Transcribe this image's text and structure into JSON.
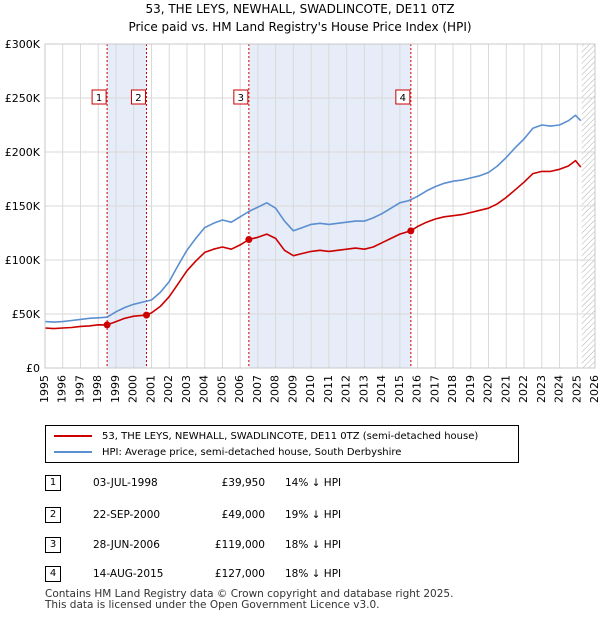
{
  "chart_data": {
    "type": "line",
    "title": "53, THE LEYS, NEWHALL, SWADLINCOTE, DE11 0TZ",
    "subtitle": "Price paid vs. HM Land Registry's House Price Index (HPI)",
    "xlim": [
      1995,
      2026
    ],
    "ylim": [
      0,
      300000
    ],
    "y_ticks": [
      0,
      50000,
      100000,
      150000,
      200000,
      250000,
      300000
    ],
    "y_tick_labels": [
      "£0",
      "£50K",
      "£100K",
      "£150K",
      "£200K",
      "£250K",
      "£300K"
    ],
    "x_ticks": [
      1995,
      1996,
      1997,
      1998,
      1999,
      2000,
      2001,
      2002,
      2003,
      2004,
      2005,
      2006,
      2007,
      2008,
      2009,
      2010,
      2011,
      2012,
      2013,
      2014,
      2015,
      2016,
      2017,
      2018,
      2019,
      2020,
      2021,
      2022,
      2023,
      2024,
      2025,
      2026
    ],
    "x_tick_labels": [
      "1995",
      "1996",
      "1997",
      "1998",
      "1999",
      "2000",
      "2001",
      "2002",
      "2003",
      "2004",
      "2005",
      "2006",
      "2007",
      "2008",
      "2009",
      "2010",
      "2011",
      "2012",
      "2013",
      "2014",
      "2015",
      "2016",
      "2017",
      "2018",
      "2019",
      "2020",
      "2021",
      "2022",
      "2023",
      "2024",
      "2025",
      "2026"
    ],
    "grid": true,
    "shaded_ranges": [
      [
        1998.5,
        2000.72
      ],
      [
        2006.49,
        2015.62
      ]
    ],
    "future_hatch_from": 2025.25,
    "series": [
      {
        "name": "53, THE LEYS, NEWHALL, SWADLINCOTE, DE11 0TZ (semi-detached house)",
        "color": "#cc0000",
        "x": [
          1995.0,
          1995.5,
          1996.0,
          1996.5,
          1997.0,
          1997.5,
          1998.0,
          1998.5,
          1999.0,
          1999.5,
          2000.0,
          2000.72,
          2001.0,
          2001.5,
          2002.0,
          2002.5,
          2003.0,
          2003.5,
          2004.0,
          2004.5,
          2005.0,
          2005.5,
          2006.0,
          2006.49,
          2007.0,
          2007.5,
          2008.0,
          2008.5,
          2009.0,
          2009.5,
          2010.0,
          2010.5,
          2011.0,
          2011.5,
          2012.0,
          2012.5,
          2013.0,
          2013.5,
          2014.0,
          2014.5,
          2015.0,
          2015.62,
          2016.0,
          2016.5,
          2017.0,
          2017.5,
          2018.0,
          2018.5,
          2019.0,
          2019.5,
          2020.0,
          2020.5,
          2021.0,
          2021.5,
          2022.0,
          2022.5,
          2023.0,
          2023.5,
          2024.0,
          2024.5,
          2024.9,
          2025.2
        ],
        "values": [
          37000,
          36500,
          37000,
          37500,
          38500,
          39000,
          40000,
          39950,
          43000,
          46000,
          48000,
          49000,
          51000,
          57000,
          66000,
          78000,
          90000,
          99000,
          107000,
          110000,
          112000,
          110000,
          114000,
          119000,
          121000,
          124000,
          120000,
          109000,
          104000,
          106000,
          108000,
          109000,
          108000,
          109000,
          110000,
          111000,
          110000,
          112000,
          116000,
          120000,
          124000,
          127000,
          131000,
          135000,
          138000,
          140000,
          141000,
          142000,
          144000,
          146000,
          148000,
          152000,
          158000,
          165000,
          172000,
          180000,
          182000,
          182000,
          184000,
          187000,
          192000,
          186000
        ]
      },
      {
        "name": "HPI: Average price, semi-detached house, South Derbyshire",
        "color": "#5b8fd0",
        "x": [
          1995.0,
          1995.5,
          1996.0,
          1996.5,
          1997.0,
          1997.5,
          1998.0,
          1998.5,
          1999.0,
          1999.5,
          2000.0,
          2000.5,
          2001.0,
          2001.5,
          2002.0,
          2002.5,
          2003.0,
          2003.5,
          2004.0,
          2004.5,
          2005.0,
          2005.5,
          2006.0,
          2006.5,
          2007.0,
          2007.5,
          2008.0,
          2008.5,
          2009.0,
          2009.5,
          2010.0,
          2010.5,
          2011.0,
          2011.5,
          2012.0,
          2012.5,
          2013.0,
          2013.5,
          2014.0,
          2014.5,
          2015.0,
          2015.5,
          2016.0,
          2016.5,
          2017.0,
          2017.5,
          2018.0,
          2018.5,
          2019.0,
          2019.5,
          2020.0,
          2020.5,
          2021.0,
          2021.5,
          2022.0,
          2022.5,
          2023.0,
          2023.5,
          2024.0,
          2024.5,
          2024.9,
          2025.2
        ],
        "values": [
          43000,
          42500,
          43000,
          44000,
          45000,
          46000,
          46500,
          47000,
          52000,
          56000,
          59000,
          61000,
          63000,
          70000,
          80000,
          95000,
          109000,
          120000,
          130000,
          134000,
          137000,
          135000,
          140000,
          145000,
          149000,
          153000,
          148000,
          136000,
          127000,
          130000,
          133000,
          134000,
          133000,
          134000,
          135000,
          136000,
          136000,
          139000,
          143000,
          148000,
          153000,
          155000,
          159000,
          164000,
          168000,
          171000,
          173000,
          174000,
          176000,
          178000,
          181000,
          187000,
          195000,
          204000,
          212000,
          222000,
          225000,
          224000,
          225000,
          229000,
          234000,
          229000
        ]
      }
    ],
    "transactions": [
      {
        "id": "1",
        "label": "1",
        "date": "03-JUL-1998",
        "x": 1998.5,
        "price": "£39,950",
        "value": 39950,
        "hpi_diff": "14% ↓ HPI"
      },
      {
        "id": "2",
        "label": "2",
        "date": "22-SEP-2000",
        "x": 2000.72,
        "price": "£49,000",
        "value": 49000,
        "hpi_diff": "19% ↓ HPI"
      },
      {
        "id": "3",
        "label": "3",
        "date": "28-JUN-2006",
        "x": 2006.49,
        "price": "£119,000",
        "value": 119000,
        "hpi_diff": "18% ↓ HPI"
      },
      {
        "id": "4",
        "label": "4",
        "date": "14-AUG-2015",
        "x": 2015.62,
        "price": "£127,000",
        "value": 127000,
        "hpi_diff": "18% ↓ HPI"
      }
    ]
  },
  "legend": {
    "property_label": "53, THE LEYS, NEWHALL, SWADLINCOTE, DE11 0TZ (semi-detached house)",
    "hpi_label": "HPI: Average price, semi-detached house, South Derbyshire"
  },
  "footer": {
    "line1": "Contains HM Land Registry data © Crown copyright and database right 2025.",
    "line2": "This data is licensed under the Open Government Licence v3.0."
  }
}
